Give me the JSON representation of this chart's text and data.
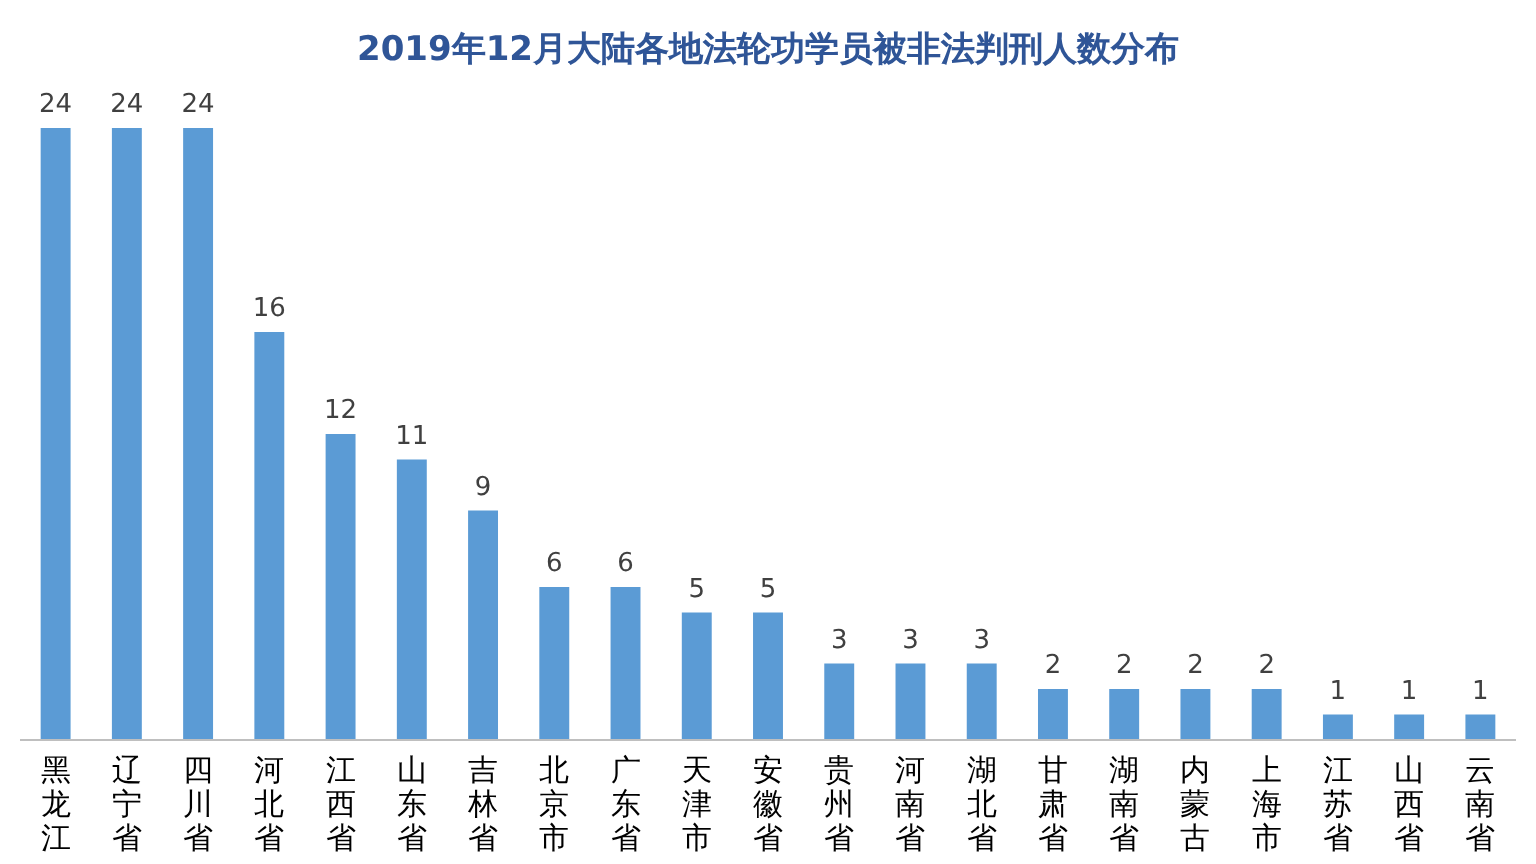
{
  "chart_data": {
    "type": "bar",
    "title": "2019年12月大陆各地法轮功学员被非法判刑人数分布",
    "categories": [
      "黑龙江",
      "辽宁省",
      "四川省",
      "河北省",
      "江西省",
      "山东省",
      "吉林省",
      "北京市",
      "广东省",
      "天津市",
      "安徽省",
      "贵州省",
      "河南省",
      "湖北省",
      "甘肃省",
      "湖南省",
      "内蒙古",
      "上海市",
      "江苏省",
      "山西省",
      "云南省"
    ],
    "values": [
      24,
      24,
      24,
      16,
      12,
      11,
      9,
      6,
      6,
      5,
      5,
      3,
      3,
      3,
      2,
      2,
      2,
      2,
      1,
      1,
      1
    ],
    "color": "#5b9bd5",
    "data_labels": true
  }
}
